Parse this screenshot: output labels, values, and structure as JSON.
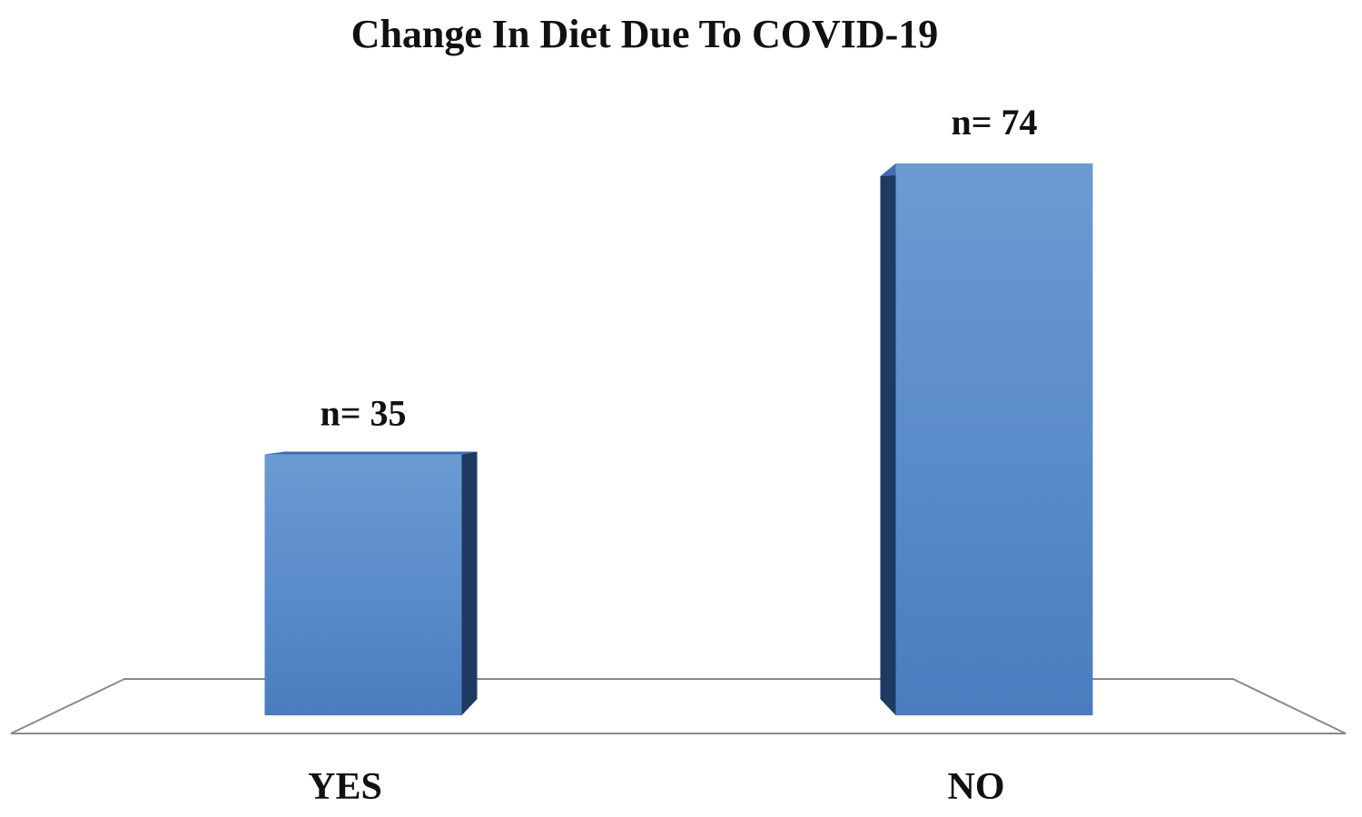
{
  "chart_data": {
    "type": "bar",
    "title": "Change In Diet Due To COVID-19",
    "categories": [
      "YES",
      "NO"
    ],
    "values": [
      35,
      74
    ],
    "data_labels": [
      "n= 35",
      "n= 74"
    ],
    "xlabel": "",
    "ylabel": "",
    "ylim": [
      0,
      80
    ],
    "grid": false,
    "legend": "none",
    "style": "3d-column"
  },
  "colors": {
    "bar_front_light": "#6a9bd2",
    "bar_front": "#5b8ccb",
    "bar_front_dark": "#4a7cbf",
    "bar_side": "#1e3a62",
    "bar_top": "#3f6fb0",
    "floor_stroke": "#8a8a8a"
  }
}
